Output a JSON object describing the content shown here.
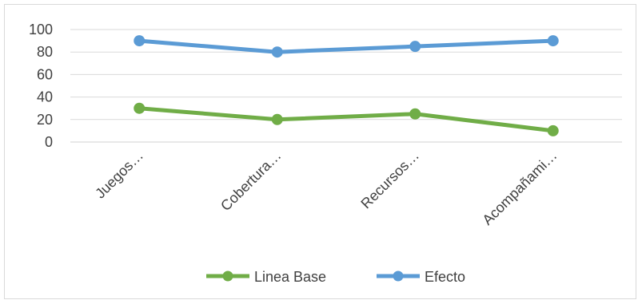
{
  "chart_data": {
    "type": "line",
    "categories": [
      "Juegos…",
      "Cobertura…",
      "Recursos…",
      "Acompañami…"
    ],
    "series": [
      {
        "name": "Linea Base",
        "values": [
          30,
          20,
          25,
          10
        ],
        "color": "#70ad47"
      },
      {
        "name": "Efecto",
        "values": [
          90,
          80,
          85,
          90
        ],
        "color": "#5b9bd5"
      }
    ],
    "ylim": [
      0,
      100
    ],
    "yticks": [
      "0",
      "20",
      "40",
      "60",
      "80",
      "100"
    ],
    "grid": true,
    "legend_position": "bottom"
  }
}
